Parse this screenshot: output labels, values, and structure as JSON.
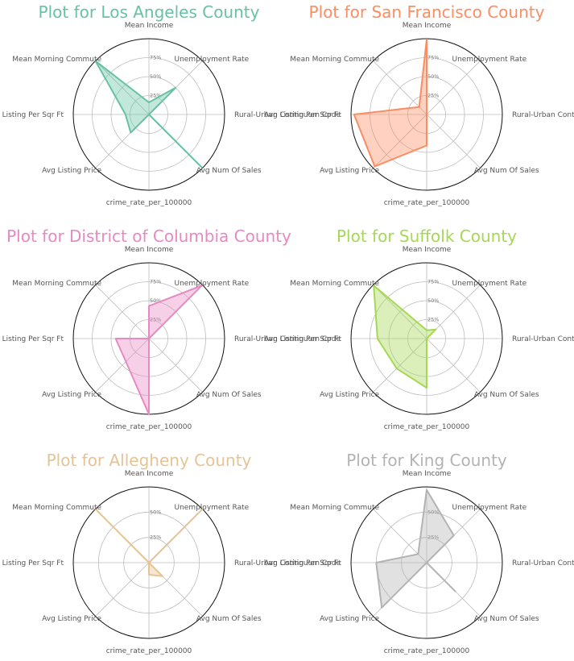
{
  "chart_data": [
    {
      "type": "radar",
      "title": "Plot for Los Angeles County",
      "color": "#66c2a5",
      "axes": [
        "Mean Income",
        "Unemployment Rate",
        "Rural-Urban Continuum Code",
        "Avg Num Of Sales",
        "crime_rate_per_100000",
        "Avg Listing Price",
        "Avg Listing Per Sqr Ft",
        "Mean Morning Commute"
      ],
      "tick_labels": [
        "25%",
        "50%",
        "75%"
      ],
      "tick_values": [
        25,
        50,
        75
      ],
      "max": 100,
      "values": [
        16,
        50,
        0,
        99,
        0,
        34,
        31,
        100
      ]
    },
    {
      "type": "radar",
      "title": "Plot for San Francisco County",
      "color": "#fc8d62",
      "axes": [
        "Mean Income",
        "Unemployment Rate",
        "Rural-Urban Continuum Code",
        "Avg Num Of Sales",
        "crime_rate_per_100000",
        "Avg Listing Price",
        "Avg Listing Per Sqr Ft",
        "Mean Morning Commute"
      ],
      "tick_labels": [
        "25%",
        "50%",
        "75%"
      ],
      "tick_values": [
        25,
        50,
        75
      ],
      "max": 100,
      "values": [
        99,
        0,
        0,
        0,
        41,
        97,
        96,
        14
      ]
    },
    {
      "type": "radar",
      "title": "Plot for District of Columbia County",
      "color": "#e78ac3",
      "axes": [
        "Mean Income",
        "Unemployment Rate",
        "Rural-Urban Continuum Code",
        "Avg Num Of Sales",
        "crime_rate_per_100000",
        "Avg Listing Price",
        "Avg Listing Per Sqr Ft",
        "Mean Morning Commute"
      ],
      "tick_labels": [
        "25%",
        "50%",
        "75%"
      ],
      "tick_values": [
        25,
        50,
        75
      ],
      "max": 100,
      "values": [
        43,
        99,
        0,
        0,
        100,
        43,
        44,
        0
      ]
    },
    {
      "type": "radar",
      "title": "Plot for Suffolk County",
      "color": "#a6d854",
      "axes": [
        "Mean Income",
        "Unemployment Rate",
        "Rural-Urban Continuum Code",
        "Avg Num Of Sales",
        "crime_rate_per_100000",
        "Avg Listing Price",
        "Avg Listing Per Sqr Ft",
        "Mean Morning Commute"
      ],
      "tick_labels": [
        "25%",
        "50%",
        "75%"
      ],
      "tick_values": [
        25,
        50,
        75
      ],
      "max": 100,
      "values": [
        11,
        17,
        0,
        0,
        65,
        56,
        65,
        99
      ]
    },
    {
      "type": "radar",
      "title": "Plot for Allegheny County",
      "color": "#e5c494",
      "axes": [
        "Mean Income",
        "Unemployment Rate",
        "Rural-Urban Continuum Code",
        "Avg Num Of Sales",
        "crime_rate_per_100000",
        "Avg Listing Price",
        "Avg Listing Per Sqr Ft",
        "Mean Morning Commute"
      ],
      "tick_labels": [
        "25%",
        "50%"
      ],
      "tick_values": [
        25,
        50
      ],
      "max": 75,
      "values": [
        0,
        75,
        0,
        19,
        12,
        0,
        0,
        75
      ]
    },
    {
      "type": "radar",
      "title": "Plot for King County",
      "color": "#b3b3b3",
      "axes": [
        "Mean Income",
        "Unemployment Rate",
        "Rural-Urban Continuum Code",
        "Avg Num Of Sales",
        "crime_rate_per_100000",
        "Avg Listing Price",
        "Avg Listing Per Sqr Ft",
        "Mean Morning Commute"
      ],
      "tick_labels": [
        "25%",
        "50%"
      ],
      "tick_values": [
        25,
        50
      ],
      "max": 75,
      "values": [
        72,
        38,
        0,
        40,
        0,
        63,
        50,
        12
      ]
    }
  ]
}
